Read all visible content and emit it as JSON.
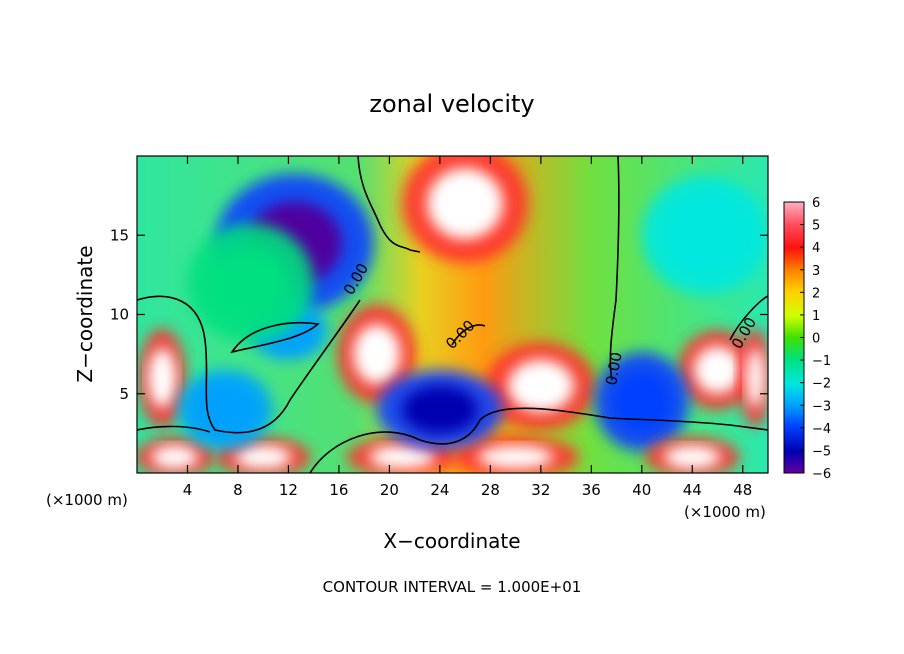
{
  "chart_data": {
    "type": "heatmap",
    "title": "zonal velocity",
    "xlabel": "X−coordinate",
    "ylabel": "Z−coordinate",
    "x_unit": "(×1000 m)",
    "x_unit_right": "(×1000 m)",
    "xlim": [
      0,
      50
    ],
    "ylim": [
      0,
      20
    ],
    "x_ticks": [
      4,
      8,
      12,
      16,
      20,
      24,
      28,
      32,
      36,
      40,
      44,
      48
    ],
    "y_ticks": [
      5,
      10,
      15
    ],
    "colorbar": {
      "range": [
        -6,
        6
      ],
      "ticks": [
        6,
        5,
        4,
        3,
        2,
        1,
        0,
        -1,
        -2,
        -3,
        -4,
        -5,
        -6
      ]
    },
    "contour_label": "0.00",
    "footer": "CONTOUR INTERVAL = 1.000E+01",
    "field_features": [
      {
        "x": 12.5,
        "z": 14.5,
        "value": -6,
        "rx": 5,
        "rz": 3.5
      },
      {
        "x": 26,
        "z": 17,
        "value": 5.5,
        "rx": 4,
        "rz": 3
      },
      {
        "x": 19,
        "z": 7.5,
        "value": 6,
        "rx": 2.5,
        "rz": 2.5
      },
      {
        "x": 32,
        "z": 5.5,
        "value": 6,
        "rx": 3.5,
        "rz": 2.2
      },
      {
        "x": 2,
        "z": 6,
        "value": 6,
        "rx": 1.5,
        "rz": 2.5
      },
      {
        "x": 46,
        "z": 6.5,
        "value": 6,
        "rx": 2.5,
        "rz": 2
      },
      {
        "x": 49,
        "z": 6,
        "value": 6,
        "rx": 1,
        "rz": 2.5
      },
      {
        "x": 40,
        "z": 4.5,
        "value": -4,
        "rx": 3,
        "rz": 2.5
      },
      {
        "x": 3,
        "z": 1,
        "value": 6,
        "rx": 2.5,
        "rz": 1
      },
      {
        "x": 10,
        "z": 1,
        "value": 6,
        "rx": 3,
        "rz": 1
      },
      {
        "x": 21,
        "z": 1,
        "value": 6,
        "rx": 3.5,
        "rz": 1
      },
      {
        "x": 30,
        "z": 1,
        "value": 6,
        "rx": 4,
        "rz": 1
      },
      {
        "x": 44,
        "z": 1,
        "value": 6,
        "rx": 3,
        "rz": 1
      },
      {
        "x": 24,
        "z": 4,
        "value": -5,
        "rx": 4,
        "rz": 2
      },
      {
        "x": 7,
        "z": 4,
        "value": -3,
        "rx": 3,
        "rz": 2
      },
      {
        "x": 12,
        "z": 9,
        "value": -3,
        "rx": 2.5,
        "rz": 1.5
      },
      {
        "x": 9,
        "z": 12,
        "value": -1,
        "rx": 4,
        "rz": 3
      },
      {
        "x": 45,
        "z": 15,
        "value": -2,
        "rx": 4,
        "rz": 3
      }
    ]
  }
}
